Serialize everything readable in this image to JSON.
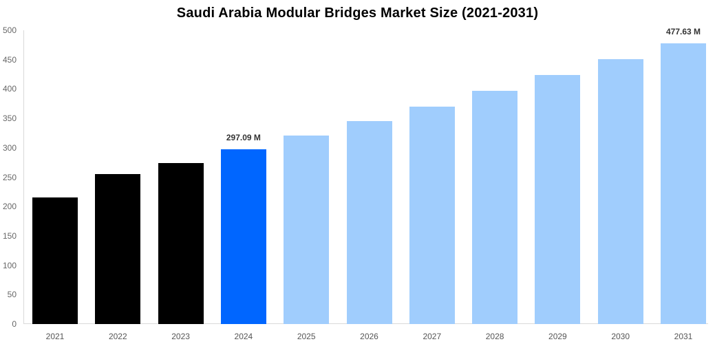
{
  "chart_data": {
    "type": "bar",
    "title": "Saudi Arabia Modular Bridges Market Size (2021-2031)",
    "xlabel": "",
    "ylabel": "",
    "ylim": [
      0,
      500
    ],
    "yticks": [
      0,
      50,
      100,
      150,
      200,
      250,
      300,
      350,
      400,
      450,
      500
    ],
    "grid": false,
    "legend": null,
    "categories": [
      "2021",
      "2022",
      "2023",
      "2024",
      "2025",
      "2026",
      "2027",
      "2028",
      "2029",
      "2030",
      "2031"
    ],
    "values": [
      216,
      255,
      274,
      297.09,
      321,
      345,
      370,
      397,
      424,
      451,
      477.63
    ],
    "colors": [
      "#000000",
      "#000000",
      "#000000",
      "#0066ff",
      "#a0cdfd",
      "#a0cdfd",
      "#a0cdfd",
      "#a0cdfd",
      "#a0cdfd",
      "#a0cdfd",
      "#a0cdfd"
    ],
    "annotations": [
      {
        "category": "2024",
        "label": "297.09 M"
      },
      {
        "category": "2031",
        "label": "477.63 M"
      }
    ]
  }
}
